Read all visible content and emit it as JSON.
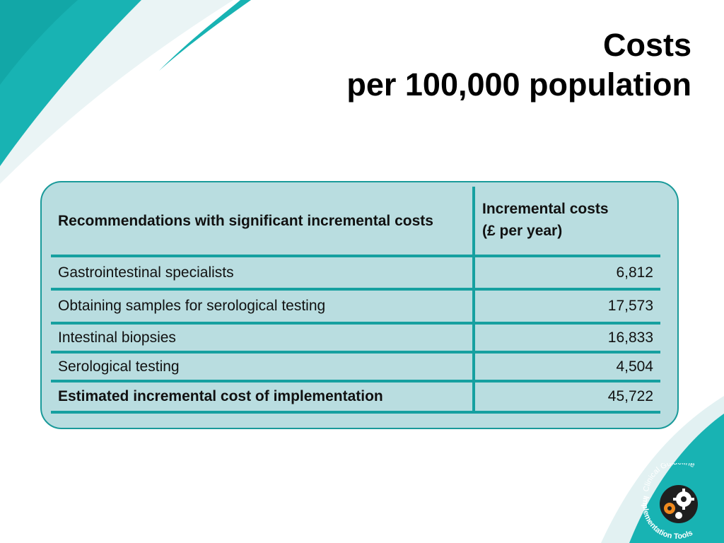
{
  "title": {
    "line1": "Costs",
    "line2": "per 100,000 population"
  },
  "table": {
    "header": {
      "col1": "Recommendations with significant incremental costs",
      "col2_line1": "Incremental costs",
      "col2_line2": "(£ per year)"
    },
    "rows": [
      {
        "label": "Gastrointestinal specialists",
        "value": "6,812"
      },
      {
        "label": "Obtaining samples for serological testing",
        "value": "17,573"
      },
      {
        "label": "Intestinal biopsies",
        "value": "16,833"
      },
      {
        "label": "Serological testing",
        "value": "4,504"
      }
    ],
    "total": {
      "label": "Estimated incremental cost of implementation",
      "value": "45,722"
    }
  },
  "logo": {
    "text": "Clinical Guideline Implementation Tools"
  },
  "colors": {
    "teal": "#16a0a0",
    "panel": "#b9dde0",
    "swoosh_light": "#e6f2f3"
  }
}
